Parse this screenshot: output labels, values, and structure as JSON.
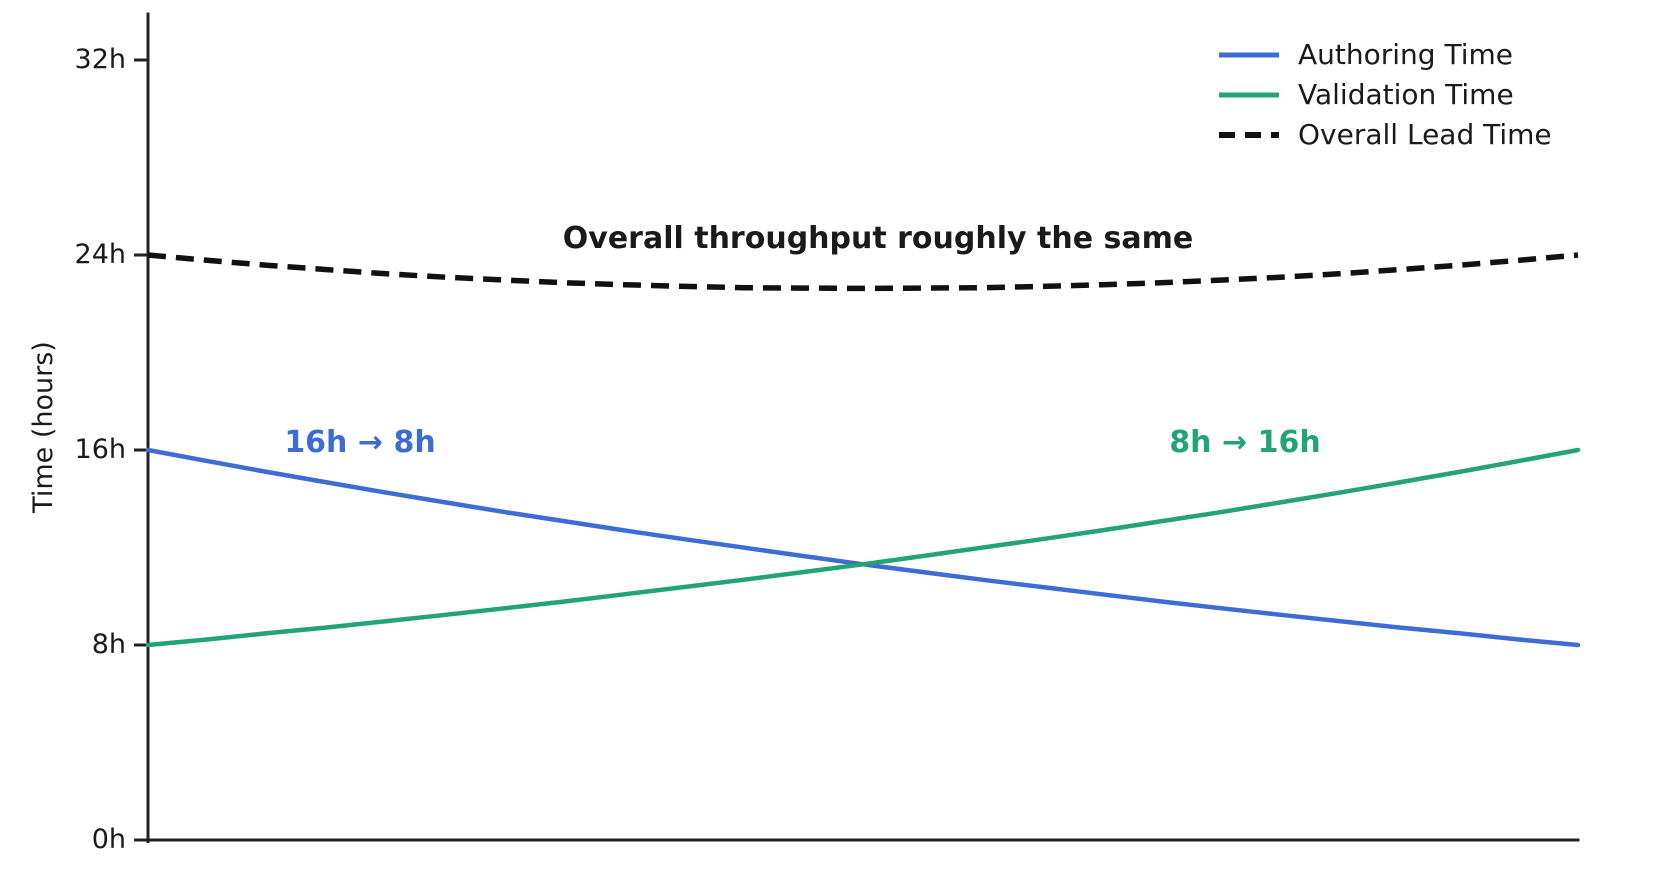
{
  "figure": {
    "background_color": "#ffffff",
    "axis_color": "#222222",
    "text_color": "#1a1a1a"
  },
  "legend": [
    {
      "label": "Authoring Time",
      "color": "#3d6cd4",
      "style": "solid"
    },
    {
      "label": "Validation Time",
      "color": "#22a477",
      "style": "solid"
    },
    {
      "label": "Overall Lead Time",
      "color": "#111111",
      "style": "dashed"
    }
  ],
  "annotations": {
    "center": {
      "text": "Overall throughput roughly the same",
      "color": "#1a1a1a"
    },
    "authoring": {
      "text": "16h → 8h",
      "color": "#3d6cd4"
    },
    "validation": {
      "text": "8h → 16h",
      "color": "#22a477"
    }
  },
  "chart_data": {
    "type": "line",
    "title": "",
    "xlabel": "",
    "ylabel": "Time (hours)",
    "grid": false,
    "legend_position": "upper right",
    "x_axis": {
      "range": [
        0,
        1
      ],
      "tick_labels": []
    },
    "y_axis": {
      "range_hours": [
        0,
        34
      ],
      "ticks_hours": [
        0,
        8,
        16,
        24,
        32
      ],
      "tick_labels": [
        "0h",
        "8h",
        "16h",
        "24h",
        "32h"
      ]
    },
    "x": [
      0,
      0.042,
      0.083,
      0.125,
      0.167,
      0.208,
      0.25,
      0.292,
      0.333,
      0.375,
      0.417,
      0.458,
      0.5,
      0.542,
      0.583,
      0.625,
      0.667,
      0.708,
      0.75,
      0.792,
      0.833,
      0.875,
      0.917,
      0.958,
      1
    ],
    "series": [
      {
        "name": "Authoring Time",
        "color": "#3d6cd4",
        "style": "solid",
        "start_label": "16h",
        "end_label": "8h",
        "values": [
          16,
          15.54,
          15.1,
          14.67,
          14.25,
          13.85,
          13.45,
          13.07,
          12.7,
          12.34,
          11.99,
          11.65,
          11.31,
          10.99,
          10.68,
          10.38,
          10.08,
          9.79,
          9.51,
          9.24,
          8.98,
          8.72,
          8.48,
          8.23,
          8
        ]
      },
      {
        "name": "Validation Time",
        "color": "#22a477",
        "style": "solid",
        "start_label": "8h",
        "end_label": "16h",
        "values": [
          8,
          8.23,
          8.48,
          8.72,
          8.98,
          9.24,
          9.51,
          9.79,
          10.08,
          10.38,
          10.68,
          10.99,
          11.31,
          11.65,
          11.99,
          12.34,
          12.7,
          13.07,
          13.45,
          13.85,
          14.25,
          14.67,
          15.1,
          15.54,
          16
        ]
      },
      {
        "name": "Overall Lead Time",
        "color": "#111111",
        "style": "dashed",
        "start_label": "24h",
        "end_label": "24h",
        "values": [
          24,
          23.78,
          23.58,
          23.4,
          23.23,
          23.09,
          22.97,
          22.86,
          22.78,
          22.71,
          22.66,
          22.64,
          22.63,
          22.64,
          22.66,
          22.71,
          22.78,
          22.86,
          22.97,
          23.09,
          23.23,
          23.4,
          23.58,
          23.78,
          24
        ]
      }
    ]
  }
}
